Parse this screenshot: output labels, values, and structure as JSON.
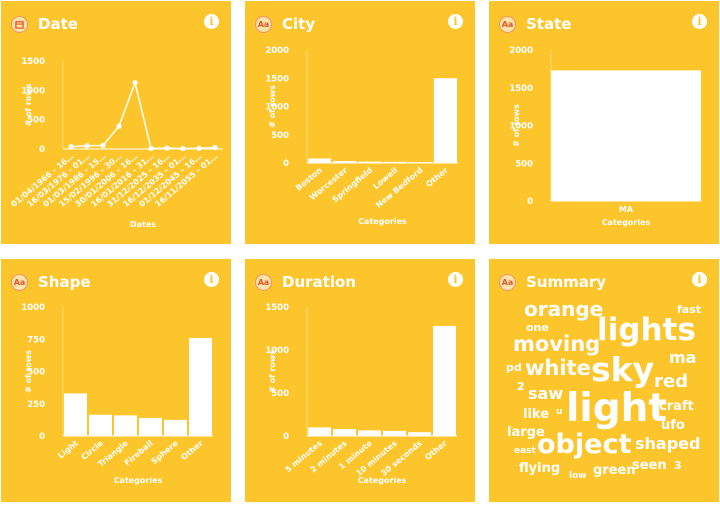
{
  "cards": [
    {
      "id": "date",
      "title": "Date",
      "type_icon": "calendar-icon",
      "info": "i"
    },
    {
      "id": "city",
      "title": "City",
      "type_icon": "text-type-icon",
      "type_label": "Aa",
      "info": "i"
    },
    {
      "id": "state",
      "title": "State",
      "type_icon": "text-type-icon",
      "type_label": "Aa",
      "info": "i"
    },
    {
      "id": "shape",
      "title": "Shape",
      "type_icon": "text-type-icon",
      "type_label": "Aa",
      "info": "i"
    },
    {
      "id": "duration",
      "title": "Duration",
      "type_icon": "text-type-icon",
      "type_label": "Aa",
      "info": "i"
    },
    {
      "id": "summary",
      "title": "Summary",
      "type_icon": "text-type-icon",
      "type_label": "Aa",
      "info": "i"
    }
  ],
  "summary_words": [
    {
      "text": "orange",
      "size": 20
    },
    {
      "text": "fast",
      "size": 11
    },
    {
      "text": "one",
      "size": 11
    },
    {
      "text": "lights",
      "size": 31
    },
    {
      "text": "moving",
      "size": 21
    },
    {
      "text": "ma",
      "size": 16
    },
    {
      "text": "pd",
      "size": 11
    },
    {
      "text": "white",
      "size": 21
    },
    {
      "text": "sky",
      "size": 33
    },
    {
      "text": "red",
      "size": 18
    },
    {
      "text": "2",
      "size": 11
    },
    {
      "text": "saw",
      "size": 16
    },
    {
      "text": "light",
      "size": 39
    },
    {
      "text": "craft",
      "size": 13
    },
    {
      "text": "like",
      "size": 13
    },
    {
      "text": "u",
      "size": 9
    },
    {
      "text": "ufo",
      "size": 13
    },
    {
      "text": "large",
      "size": 13
    },
    {
      "text": "object",
      "size": 27
    },
    {
      "text": "shaped",
      "size": 16
    },
    {
      "text": "east",
      "size": 9
    },
    {
      "text": "flying",
      "size": 13
    },
    {
      "text": "green",
      "size": 13
    },
    {
      "text": "seen",
      "size": 13
    },
    {
      "text": "3",
      "size": 11
    },
    {
      "text": "low",
      "size": 9
    }
  ],
  "chart_data": [
    {
      "id": "date",
      "type": "line",
      "x": [
        "01/04/1966 - 16…",
        "16/03/1976 - 01…",
        "01/03/1986 - 15…",
        "15/02/1996 - 30…",
        "30/01/2006 - 16…",
        "16/01/2016 - 31…",
        "31/12/2025 - 16…",
        "16/12/2035 - 01…",
        "01/12/2045 - 16…",
        "16/11/2055 - 01…"
      ],
      "values": [
        40,
        55,
        60,
        390,
        1130,
        10,
        15,
        8,
        12,
        25
      ],
      "xlabel": "Dates",
      "ylabel": "# of rows",
      "yticks": [
        0,
        500,
        1000,
        1500
      ],
      "ylim": [
        0,
        1500
      ],
      "grid": false
    },
    {
      "id": "city",
      "type": "bar",
      "categories": [
        "Boston",
        "Worcester",
        "Springfield",
        "Lowell",
        "New Bedford",
        "Other"
      ],
      "values": [
        80,
        35,
        25,
        20,
        15,
        1500
      ],
      "xlabel": "Categories",
      "ylabel": "# of rows",
      "yticks": [
        0,
        500,
        1000,
        1500,
        2000
      ],
      "ylim": [
        0,
        2000
      ],
      "grid": false
    },
    {
      "id": "state",
      "type": "bar",
      "categories": [
        "MA"
      ],
      "values": [
        1730
      ],
      "xlabel": "Categories",
      "ylabel": "# of rows",
      "yticks": [
        0,
        500,
        1000,
        1500,
        2000
      ],
      "ylim": [
        0,
        2000
      ],
      "grid": false
    },
    {
      "id": "shape",
      "type": "bar",
      "categories": [
        "Light",
        "Circle",
        "Triangle",
        "Fireball",
        "Sphere",
        "Other"
      ],
      "values": [
        330,
        165,
        160,
        140,
        125,
        760
      ],
      "xlabel": "Categories",
      "ylabel": "# of rows",
      "yticks": [
        0,
        250,
        500,
        750,
        1000
      ],
      "ylim": [
        0,
        1000
      ],
      "grid": false
    },
    {
      "id": "duration",
      "type": "bar",
      "categories": [
        "5 minutes",
        "2 minutes",
        "1 minute",
        "10 minutes",
        "30 seconds",
        "Other"
      ],
      "values": [
        100,
        80,
        65,
        60,
        45,
        1280
      ],
      "xlabel": "Categories",
      "ylabel": "# of rows",
      "yticks": [
        0,
        500,
        1000,
        1500
      ],
      "ylim": [
        0,
        1500
      ],
      "grid": false
    }
  ]
}
